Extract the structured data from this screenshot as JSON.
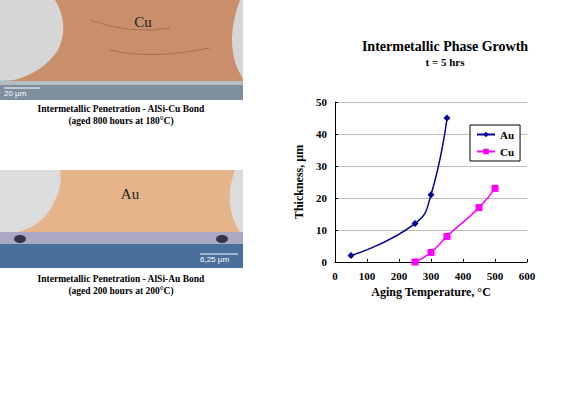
{
  "chart_data": {
    "type": "line",
    "title": "Intermetallic Phase Growth",
    "subtitle": "t = 5 hrs",
    "x_label": "Aging Temperature, °C",
    "y_label": "Thickness, µm",
    "series": [
      {
        "name": "Au",
        "color": "#000099",
        "marker": "diamond",
        "line_style": "smooth",
        "x": [
          50,
          250,
          300,
          350
        ],
        "values": [
          2,
          12,
          21,
          45
        ]
      },
      {
        "name": "Cu",
        "color": "#ff00ff",
        "marker": "square",
        "line_style": "smooth",
        "x": [
          250,
          300,
          350,
          450,
          500
        ],
        "values": [
          0,
          3,
          8,
          17,
          23
        ]
      }
    ],
    "xlim": [
      0,
      600
    ],
    "xticks": [
      0,
      100,
      200,
      300,
      400,
      500,
      600
    ],
    "ylim": [
      0,
      50
    ],
    "yticks": [
      0,
      10,
      20,
      30,
      40,
      50
    ],
    "grid": true,
    "legend": "right"
  },
  "images": [
    {
      "label": "Cu",
      "scale_label": "20 µm",
      "caption": [
        "Intermetallic Penetration - AlSi-Cu Bond",
        "(aged 800 hours at 180°C)"
      ]
    },
    {
      "label": "Au",
      "scale_label": "6,25 µm",
      "caption": [
        "Intermetallic Penetration - AlSi-Au Bond",
        "(aged 200 hours at 200°C)"
      ]
    }
  ]
}
